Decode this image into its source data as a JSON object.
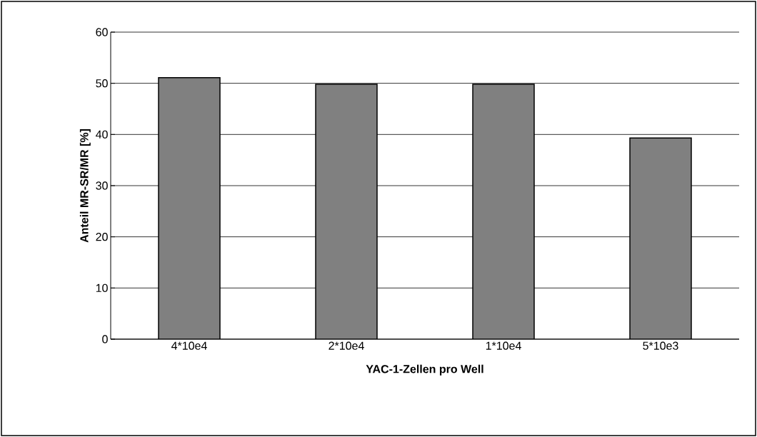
{
  "chart_data": {
    "type": "bar",
    "xlabel": "YAC-1-Zellen pro Well",
    "ylabel": "Anteil MR-SR/MR [%]",
    "categories": [
      "4*10e4",
      "2*10e4",
      "1*10e4",
      "5*10e3"
    ],
    "values": [
      51.1,
      49.8,
      49.8,
      39.3
    ],
    "color": "#808080",
    "ylim": [
      0,
      60
    ],
    "yticks": [
      0,
      10,
      20,
      30,
      40,
      50,
      60
    ],
    "grid": "y"
  }
}
